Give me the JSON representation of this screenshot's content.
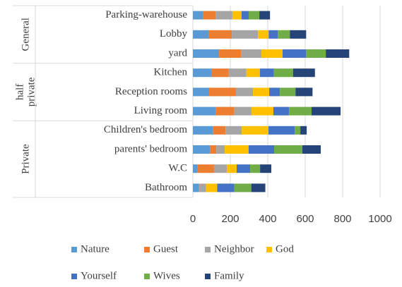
{
  "chart_data": {
    "type": "stacked_barh",
    "categories": [
      "Parking-warehouse",
      "Lobby",
      "yard",
      "Kitchen",
      "Reception rooms",
      "Living room",
      "Children's bedroom",
      "parents' bedroom",
      "W.C",
      "Bathroom"
    ],
    "groups": [
      {
        "label_lines": [
          "General"
        ],
        "count": 3
      },
      {
        "label_lines": [
          "half",
          "private"
        ],
        "count": 3
      },
      {
        "label_lines": [
          "Private"
        ],
        "count": 4
      }
    ],
    "series": [
      {
        "name": "Nature",
        "color": "#5b9bd5",
        "values": [
          53,
          83,
          140,
          98,
          87,
          121,
          106,
          91,
          26,
          30
        ]
      },
      {
        "name": "Guest",
        "color": "#ed7d31",
        "values": [
          68,
          125,
          117,
          94,
          143,
          98,
          68,
          34,
          87,
          5
        ]
      },
      {
        "name": "Neighbor",
        "color": "#a5a5a5",
        "values": [
          90,
          140,
          109,
          94,
          91,
          94,
          87,
          45,
          68,
          35
        ]
      },
      {
        "name": "God",
        "color": "#ffc000",
        "values": [
          49,
          57,
          113,
          72,
          87,
          117,
          143,
          128,
          53,
          60
        ]
      },
      {
        "name": "Yourself",
        "color": "#4472c4",
        "values": [
          38,
          49,
          125,
          75,
          57,
          83,
          140,
          136,
          72,
          91
        ]
      },
      {
        "name": "Wives",
        "color": "#70ad47",
        "values": [
          57,
          64,
          106,
          102,
          83,
          121,
          30,
          151,
          53,
          91
        ]
      },
      {
        "name": "Family",
        "color": "#264478",
        "values": [
          57,
          87,
          125,
          117,
          91,
          155,
          34,
          98,
          60,
          75
        ]
      }
    ],
    "xlim": [
      0,
      1000
    ],
    "xticks": [
      0,
      200,
      400,
      600,
      800,
      1000
    ],
    "grid": true,
    "legend": "bottom"
  }
}
